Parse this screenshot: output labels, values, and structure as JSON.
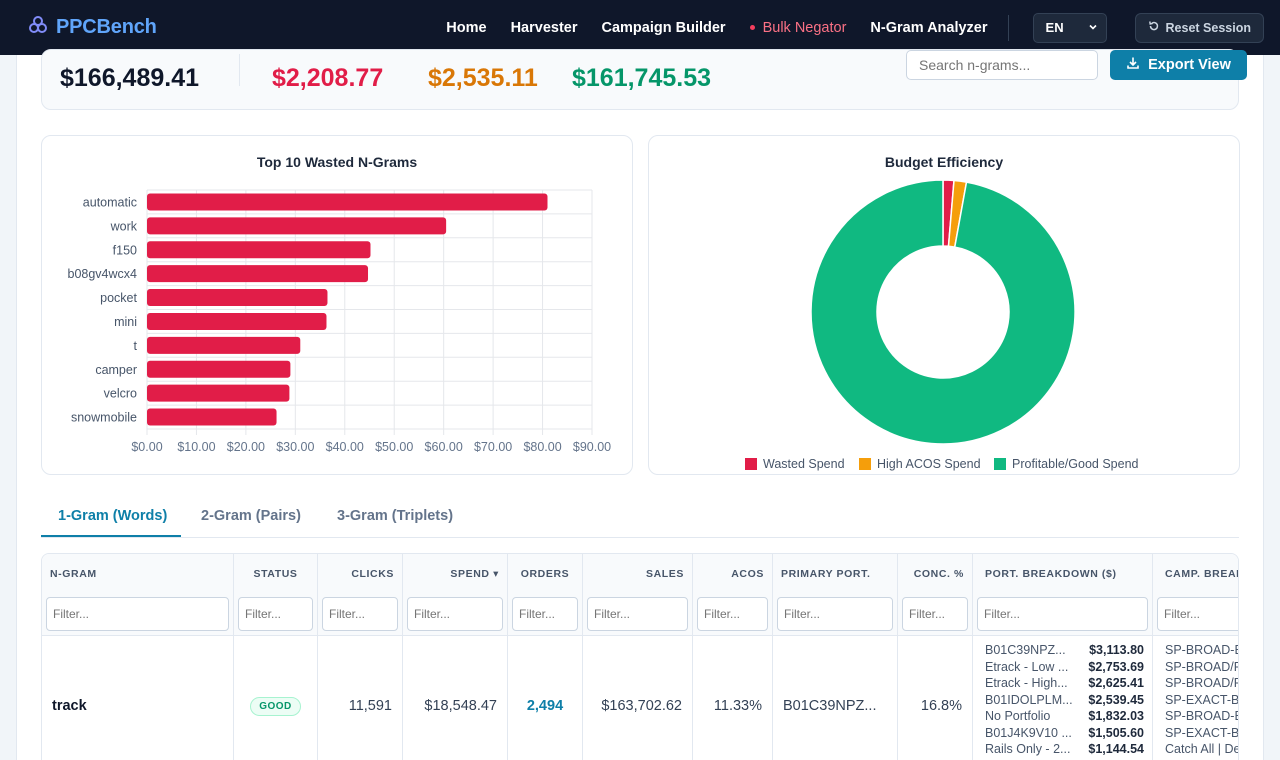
{
  "nav": {
    "brand": "PPCBench",
    "links": [
      {
        "label": "Home"
      },
      {
        "label": "Harvester"
      },
      {
        "label": "Campaign Builder"
      },
      {
        "label": "Bulk Negator"
      },
      {
        "label": "N-Gram Analyzer"
      }
    ],
    "language": "EN",
    "reset_label": "Reset Session"
  },
  "summary": {
    "total_spend": "$166,489.41",
    "wasted": "$2,208.77",
    "high_acos": "$2,535.11",
    "profitable": "$161,745.53",
    "search_placeholder": "Search n-grams...",
    "export_label": "Export View",
    "colors": {
      "wasted": "#e11d48",
      "high_acos": "#d97706",
      "profitable": "#059669"
    }
  },
  "chart_data": [
    {
      "type": "bar",
      "orientation": "horizontal",
      "title": "Top 10 Wasted N-Grams",
      "categories": [
        "automatic",
        "work",
        "f150",
        "b08gv4wcx4",
        "pocket",
        "mini",
        "t",
        "camper",
        "velcro",
        "snowmobile"
      ],
      "values": [
        81,
        60.5,
        45.2,
        44.7,
        36.5,
        36.3,
        31,
        29,
        28.8,
        26.2
      ],
      "xlim": [
        0,
        90
      ],
      "xticks": [
        "$0.00",
        "$10.00",
        "$20.00",
        "$30.00",
        "$40.00",
        "$50.00",
        "$60.00",
        "$70.00",
        "$80.00",
        "$90.00"
      ],
      "color": "#e11d48",
      "grid": true
    },
    {
      "type": "pie",
      "variant": "donut",
      "title": "Budget Efficiency",
      "labels": [
        "Wasted Spend",
        "High ACOS Spend",
        "Profitable/Good Spend"
      ],
      "values": [
        2208.77,
        2535.11,
        161745.53
      ],
      "colors": [
        "#e11d48",
        "#f59e0b",
        "#10b981"
      ],
      "legend": "bottom"
    }
  ],
  "tabs": [
    {
      "label": "1-Gram (Words)"
    },
    {
      "label": "2-Gram (Pairs)"
    },
    {
      "label": "3-Gram (Triplets)"
    }
  ],
  "table": {
    "headers": [
      "N-GRAM",
      "STATUS",
      "CLICKS",
      "SPEND ▾",
      "ORDERS",
      "SALES",
      "ACOS",
      "PRIMARY PORT.",
      "CONC. %",
      "PORT. BREAKDOWN ($)",
      "CAMP. BREAK"
    ],
    "filter_placeholder": "Filter...",
    "row": {
      "ngram": "track",
      "status": "GOOD",
      "clicks": "11,591",
      "spend": "$18,548.47",
      "orders": "2,494",
      "sales": "$163,702.62",
      "acos": "11.33%",
      "primary_port": "B01C39NPZ...",
      "conc": "16.8%",
      "port_breakdown": [
        {
          "name": "B01C39NPZ...",
          "value": "$3,113.80"
        },
        {
          "name": "Etrack - Low ...",
          "value": "$2,753.69"
        },
        {
          "name": "Etrack - High...",
          "value": "$2,625.41"
        },
        {
          "name": "B01IDOLPLM...",
          "value": "$2,539.45"
        },
        {
          "name": "No Portfolio",
          "value": "$1,832.03"
        },
        {
          "name": "B01J4K9V10 ...",
          "value": "$1,505.60"
        },
        {
          "name": "Rails Only - 2...",
          "value": "$1,144.54"
        }
      ],
      "camp_breakdown": [
        "SP-BROAD-B",
        "SP-BROAD/P",
        "SP-BROAD/P",
        "SP-EXACT-B",
        "SP-BROAD-B",
        "SP-EXACT-B",
        "Catch All | De"
      ]
    }
  }
}
